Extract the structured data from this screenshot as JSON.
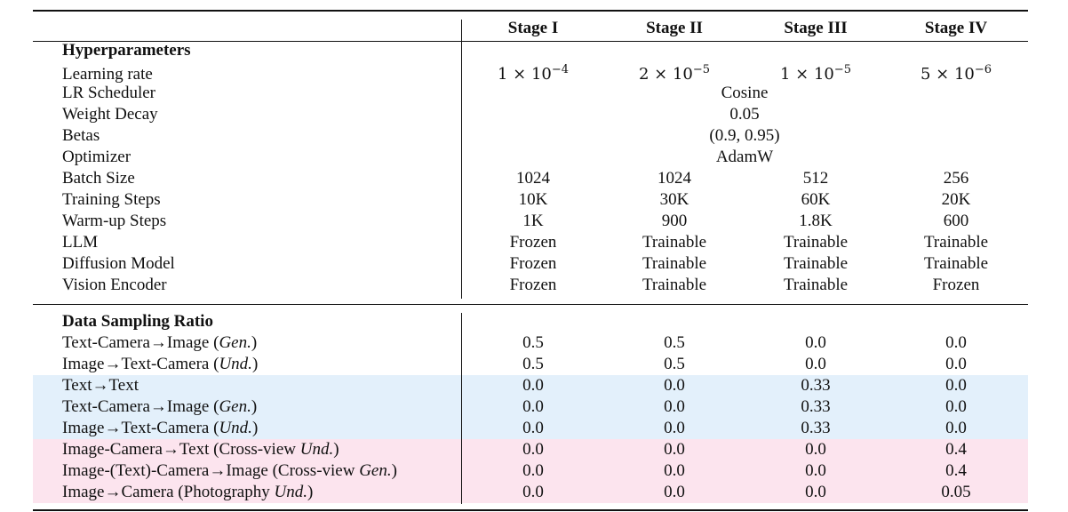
{
  "header": {
    "columns": [
      "Stage I",
      "Stage II",
      "Stage III",
      "Stage IV"
    ]
  },
  "hyperparameters": {
    "title": "Hyperparameters",
    "rows": [
      {
        "label": "Learning rate",
        "cells": [
          {
            "base": "1 × 10",
            "exp": "−4"
          },
          {
            "base": "2 × 10",
            "exp": "−5"
          },
          {
            "base": "1 × 10",
            "exp": "−5"
          },
          {
            "base": "5 × 10",
            "exp": "−6"
          }
        ]
      },
      {
        "label": "LR Scheduler",
        "cells": [
          "Cosine"
        ]
      },
      {
        "label": "Weight Decay",
        "cells": [
          "0.05"
        ]
      },
      {
        "label": "Betas",
        "cells": [
          "(0.9, 0.95)"
        ]
      },
      {
        "label": "Optimizer",
        "cells": [
          "AdamW"
        ]
      },
      {
        "label": "Batch Size",
        "cells": [
          "1024",
          "1024",
          "512",
          "256"
        ]
      },
      {
        "label": "Training Steps",
        "cells": [
          "10K",
          "30K",
          "60K",
          "20K"
        ]
      },
      {
        "label": "Warm-up Steps",
        "cells": [
          "1K",
          "900",
          "1.8K",
          "600"
        ]
      },
      {
        "label": "LLM",
        "cells": [
          "Frozen",
          "Trainable",
          "Trainable",
          "Trainable"
        ]
      },
      {
        "label": "Diffusion Model",
        "cells": [
          "Frozen",
          "Trainable",
          "Trainable",
          "Trainable"
        ]
      },
      {
        "label": "Vision Encoder",
        "cells": [
          "Frozen",
          "Trainable",
          "Trainable",
          "Frozen"
        ]
      }
    ]
  },
  "data_sampling": {
    "title": "Data Sampling Ratio",
    "rows": [
      {
        "label": [
          "Text-Camera→Image (",
          "Gen.",
          ")"
        ],
        "cells": [
          "0.5",
          "0.5",
          "0.0",
          "0.0"
        ]
      },
      {
        "label": [
          "Image→Text-Camera (",
          "Und.",
          ")"
        ],
        "cells": [
          "0.5",
          "0.5",
          "0.0",
          "0.0"
        ]
      },
      {
        "label": [
          "Text→Text"
        ],
        "cells": [
          "0.0",
          "0.0",
          "0.33",
          "0.0"
        ],
        "band": "#e3f0fb"
      },
      {
        "label": [
          "Text-Camera→Image (",
          "Gen.",
          ")"
        ],
        "cells": [
          "0.0",
          "0.0",
          "0.33",
          "0.0"
        ],
        "band": "#e3f0fb"
      },
      {
        "label": [
          "Image→Text-Camera (",
          "Und.",
          ")"
        ],
        "cells": [
          "0.0",
          "0.0",
          "0.33",
          "0.0"
        ],
        "band": "#e3f0fb"
      },
      {
        "label": [
          "Image-Camera→Text (Cross-view ",
          "Und.",
          ")"
        ],
        "cells": [
          "0.0",
          "0.0",
          "0.0",
          "0.4"
        ],
        "band": "#fce4ee"
      },
      {
        "label": [
          "Image-(Text)-Camera→Image (Cross-view ",
          "Gen.",
          ")"
        ],
        "cells": [
          "0.0",
          "0.0",
          "0.0",
          "0.4"
        ],
        "band": "#fce4ee"
      },
      {
        "label": [
          "Image→Camera (Photography ",
          "Und.",
          ")"
        ],
        "cells": [
          "0.0",
          "0.0",
          "0.0",
          "0.05"
        ],
        "band": "#fce4ee"
      }
    ]
  }
}
